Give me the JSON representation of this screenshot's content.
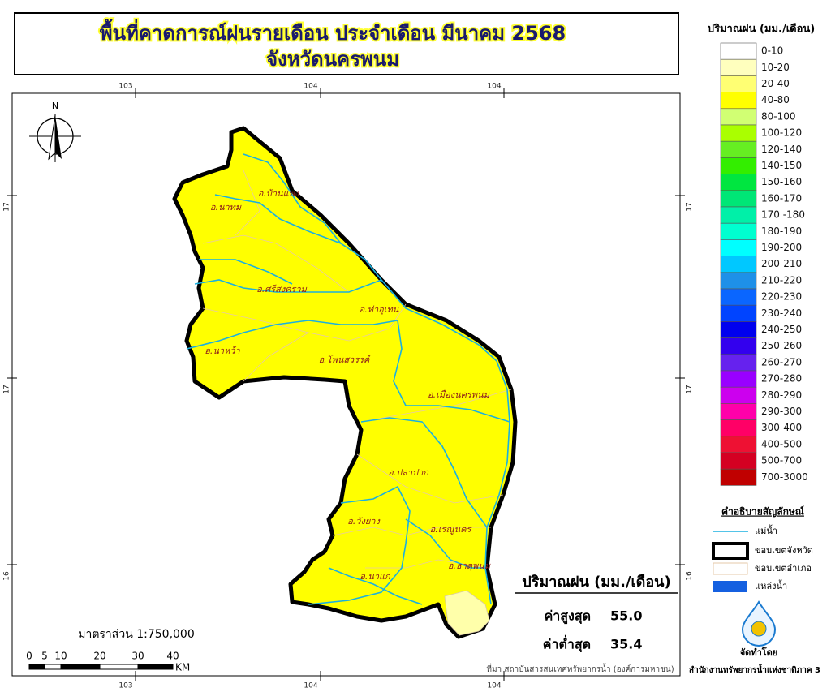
{
  "header": {
    "title": "พื้นที่คาดการณ์ฝนรายเดือน ประจำเดือน มีนาคม 2568",
    "subtitle": "จังหวัดนครพนม"
  },
  "map": {
    "north": "N",
    "grid_labels": {
      "top": [
        "103",
        "104",
        "104"
      ],
      "bottom": [
        "103",
        "104",
        "104"
      ],
      "left": [
        "17",
        "17",
        "16"
      ],
      "right": [
        "17",
        "17",
        "16"
      ]
    },
    "districts": [
      "อ.บ้านแพง",
      "อ.นาทม",
      "อ.ศรีสงคราม",
      "อ.ท่าอุเทน",
      "อ.นาหว้า",
      "อ.โพนสวรรค์",
      "อ.เมืองนครพนม",
      "อ.ปลาปาก",
      "อ.วังยาง",
      "อ.เรณูนคร",
      "อ.ธาตุพนม",
      "อ.นาแก"
    ]
  },
  "rain_legend": {
    "title": "ปริมาณฝน (มม./เดือน)",
    "classes": [
      {
        "label": "0-10",
        "color": "#ffffff"
      },
      {
        "label": "10-20",
        "color": "#ffffbe"
      },
      {
        "label": "20-40",
        "color": "#ffff73"
      },
      {
        "label": "40-80",
        "color": "#ffff00"
      },
      {
        "label": "80-100",
        "color": "#d1ff73"
      },
      {
        "label": "100-120",
        "color": "#aaff00"
      },
      {
        "label": "120-140",
        "color": "#66ee22"
      },
      {
        "label": "140-150",
        "color": "#33ee00"
      },
      {
        "label": "150-160",
        "color": "#00e640"
      },
      {
        "label": "160-170",
        "color": "#00e676"
      },
      {
        "label": "170 -180",
        "color": "#00f0a8"
      },
      {
        "label": "180-190",
        "color": "#00ffd0"
      },
      {
        "label": "190-200",
        "color": "#00ffff"
      },
      {
        "label": "200-210",
        "color": "#00c8ff"
      },
      {
        "label": "210-220",
        "color": "#1e90e8"
      },
      {
        "label": "220-230",
        "color": "#0a66ff"
      },
      {
        "label": "230-240",
        "color": "#0044ff"
      },
      {
        "label": "240-250",
        "color": "#0000ee"
      },
      {
        "label": "250-260",
        "color": "#3300ee"
      },
      {
        "label": "260-270",
        "color": "#6622ee"
      },
      {
        "label": "270-280",
        "color": "#9900ff"
      },
      {
        "label": "280-290",
        "color": "#cc00ee"
      },
      {
        "label": "290-300",
        "color": "#ff00aa"
      },
      {
        "label": "300-400",
        "color": "#ff0066"
      },
      {
        "label": "400-500",
        "color": "#ee1133"
      },
      {
        "label": "500-700",
        "color": "#d40022"
      },
      {
        "label": "700-3000",
        "color": "#c00000"
      }
    ]
  },
  "symbol_legend": {
    "title": "คำอธิบายสัญลักษณ์",
    "items": [
      "แม่น้ำ",
      "ขอบเขตจังหวัด",
      "ขอบเขตอำเภอ",
      "แหล่งน้ำ"
    ]
  },
  "stats": {
    "title": "ปริมาณฝน (มม./เดือน)",
    "rows": [
      {
        "label": "ค่าสูงสุด",
        "value": "55.0"
      },
      {
        "label": "ค่าต่ำสุด",
        "value": "35.4"
      }
    ]
  },
  "scale": {
    "label": "มาตราส่วน 1:750,000",
    "ticks": [
      "0",
      "5",
      "10",
      "20",
      "30",
      "40"
    ],
    "unit": "KM"
  },
  "source": "ที่มา  สถาบันสารสนเทศทรัพยากรน้ำ (องค์การมหาชน)",
  "producer": {
    "label": "จัดทำโดย",
    "name": "สำนักงานทรัพยากรน้ำแห่งชาติภาค 3"
  }
}
